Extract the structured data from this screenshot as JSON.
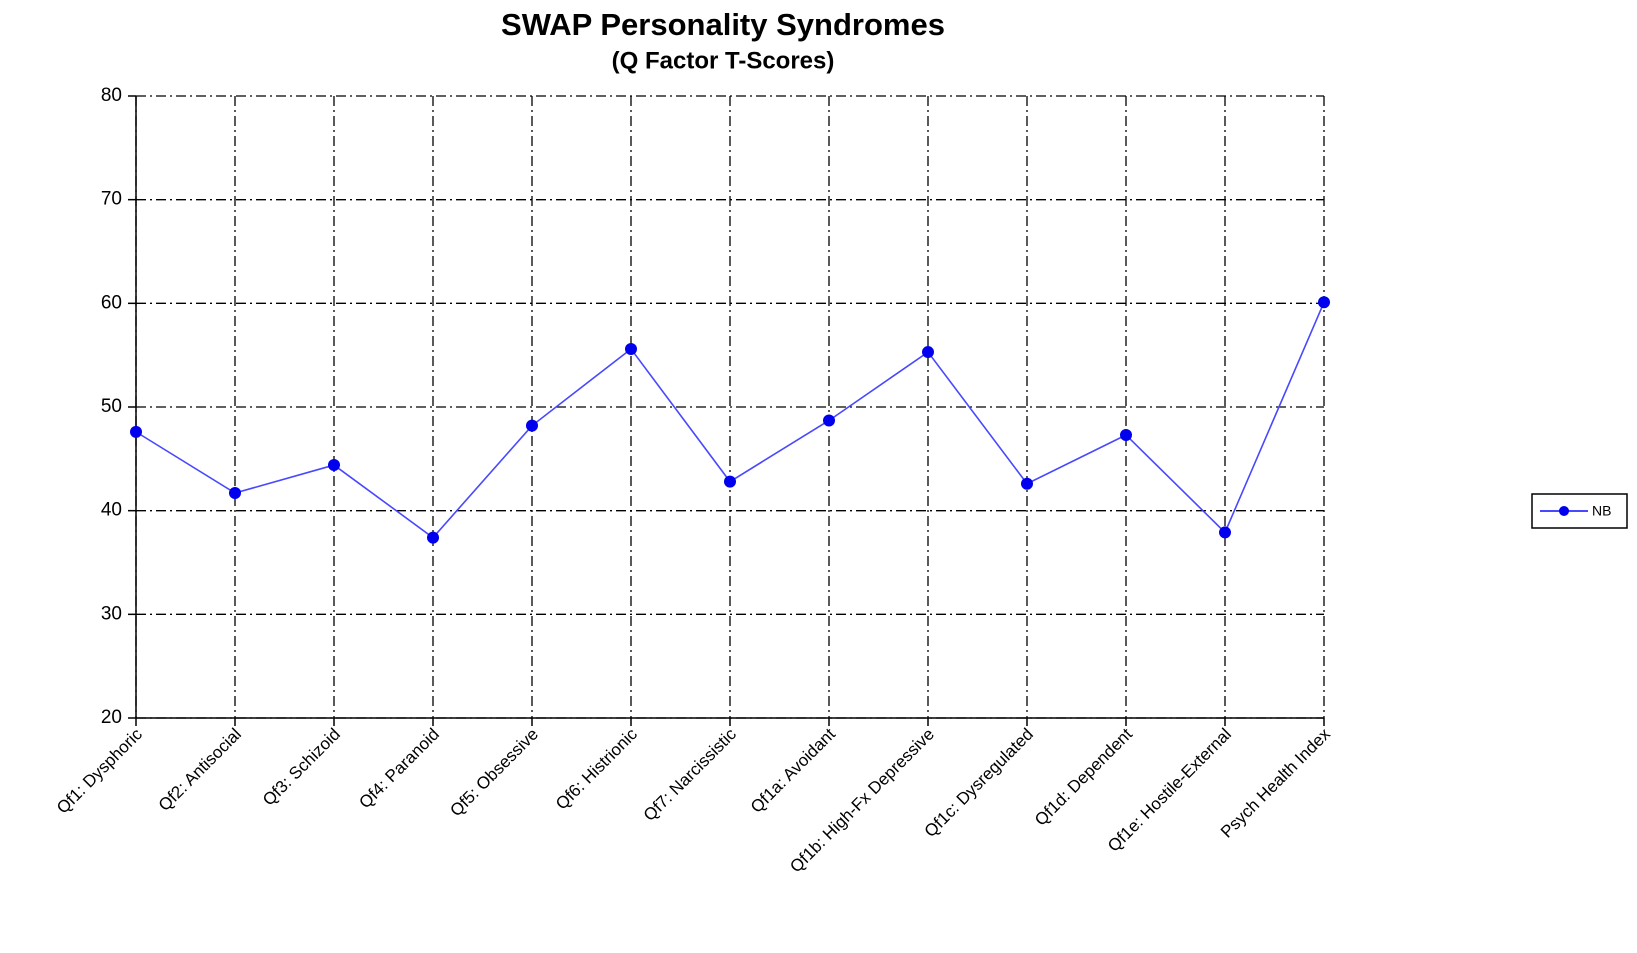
{
  "chart_data": {
    "type": "line",
    "title": "SWAP Personality Syndromes",
    "subtitle": "(Q Factor T-Scores)",
    "categories": [
      "Qf1: Dysphoric",
      "Qf2: Antisocial",
      "Qf3: Schizoid",
      "Qf4: Paranoid",
      "Qf5: Obsessive",
      "Qf6: Histrionic",
      "Qf7: Narcissistic",
      "Qf1a: Avoidant",
      "Qf1b: High-Fx Depressive",
      "Qf1c: Dysregulated",
      "Qf1d: Dependent",
      "Qf1e: Hostile-External",
      "Psych Health Index"
    ],
    "series": [
      {
        "name": "NB",
        "color": "#4848ff",
        "marker_color": "#0000ee",
        "values": [
          47.6,
          41.7,
          44.4,
          37.4,
          48.2,
          55.6,
          42.8,
          48.7,
          55.3,
          42.6,
          47.3,
          37.9,
          60.1
        ]
      }
    ],
    "ylim": [
      20,
      80
    ],
    "yticks": [
      20,
      30,
      40,
      50,
      60,
      70,
      80
    ],
    "grid": true,
    "legend": "right"
  }
}
